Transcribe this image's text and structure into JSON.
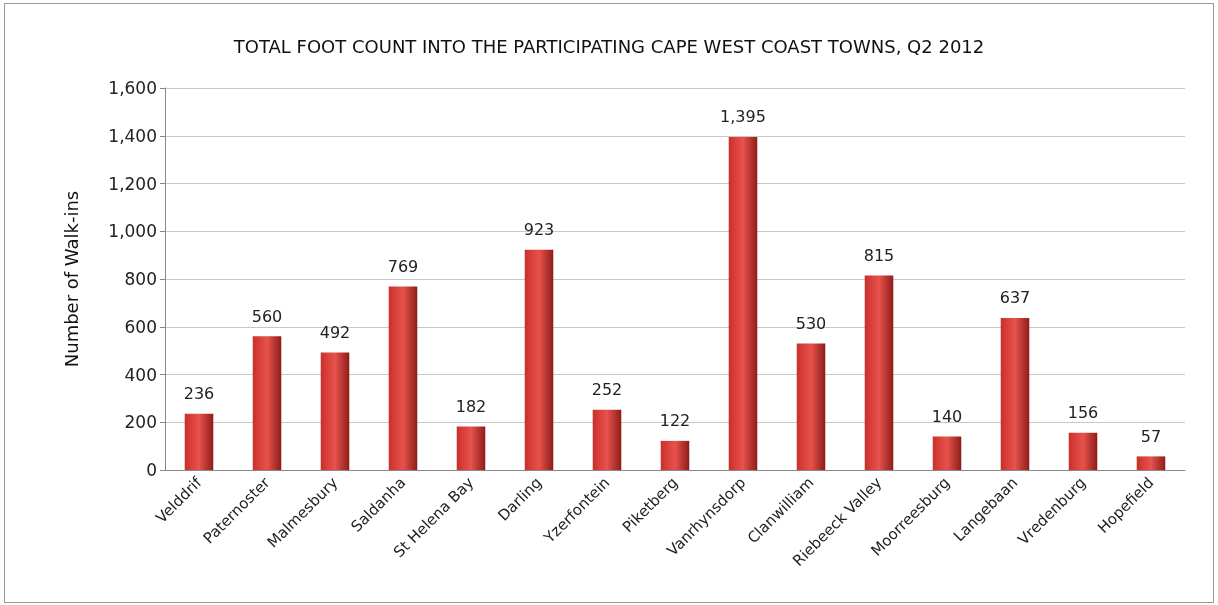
{
  "chart_data": {
    "type": "bar",
    "title": "TOTAL FOOT COUNT INTO THE PARTICIPATING CAPE WEST COAST TOWNS, Q2 2012",
    "ylabel": "Number of Walk-ins",
    "categories": [
      "Velddrif",
      "Paternoster",
      "Malmesbury",
      "Saldanha",
      "St Helena Bay",
      "Darling",
      "Yzerfontein",
      "Piketberg",
      "Vanrhynsdorp",
      "Clanwilliam",
      "Riebeeck Valley",
      "Moorreesburg",
      "Langebaan",
      "Vredenburg",
      "Hopefield"
    ],
    "values": [
      236,
      560,
      492,
      769,
      182,
      923,
      252,
      122,
      1395,
      530,
      815,
      140,
      637,
      156,
      57
    ],
    "value_labels": [
      "236",
      "560",
      "492",
      "769",
      "182",
      "923",
      "252",
      "122",
      "1,395",
      "530",
      "815",
      "140",
      "637",
      "156",
      "57"
    ],
    "color": "#c9302c",
    "ylim": [
      0,
      1600
    ],
    "yticks": [
      0,
      200,
      400,
      600,
      800,
      {
        "value": 1000,
        "label": "1,000"
      },
      {
        "value": 1200,
        "label": "1,200"
      },
      {
        "value": 1400,
        "label": "1,400"
      },
      {
        "value": 1600,
        "label": "1,600"
      }
    ],
    "grid": "y"
  }
}
